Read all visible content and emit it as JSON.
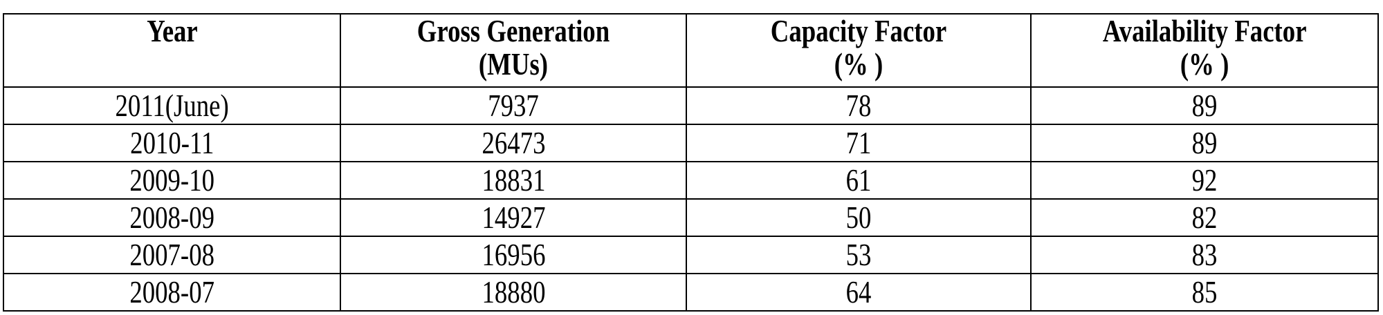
{
  "table": {
    "header": [
      "Year",
      "Gross Generation\n(MUs)",
      "Capacity Factor\n(% )",
      "Availability Factor\n(% )"
    ],
    "rows": [
      [
        "2011(June)",
        7937,
        78,
        89
      ],
      [
        "2010-11",
        26473,
        71,
        89
      ],
      [
        "2009-10",
        18831,
        61,
        92
      ],
      [
        "2008-09",
        14927,
        50,
        82
      ],
      [
        "2007-08",
        16956,
        53,
        83
      ],
      [
        "2008-07",
        18880,
        64,
        85
      ]
    ]
  }
}
